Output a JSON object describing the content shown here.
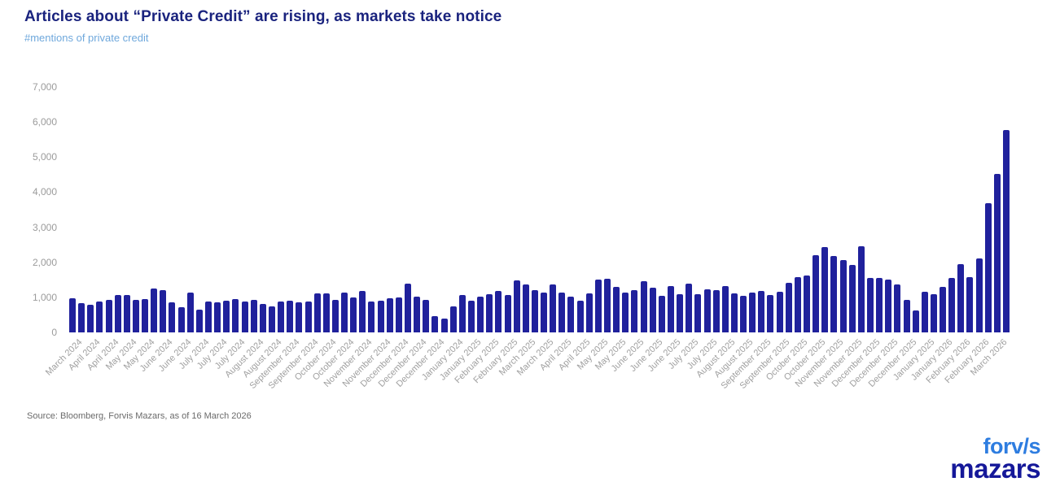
{
  "header": {
    "title": "Articles about “Private Credit” are rising, as markets take notice",
    "subtitle": "#mentions of private credit"
  },
  "chart_data": {
    "type": "bar",
    "title": "Articles about “Private Credit” are rising, as markets take notice",
    "subtitle": "#mentions of private credit",
    "ylabel": "#mentions of private credit",
    "ylim": [
      0,
      7000
    ],
    "y_tick_labels": [
      "7,000",
      "6,000",
      "5,000",
      "4,000",
      "3,000",
      "2,000",
      "1,000",
      "0"
    ],
    "y_tick_values": [
      7000,
      6000,
      5000,
      4000,
      3000,
      2000,
      1000,
      0
    ],
    "grid": false,
    "legend": false,
    "bar_color": "#20219c",
    "label_every": 2,
    "x_tick_labels": [
      "March 2024",
      "April 2024",
      "April 2024",
      "May 2024",
      "May 2024",
      "June 2024",
      "June 2024",
      "July 2024",
      "July 2024",
      "July 2024",
      "August 2024",
      "August 2024",
      "September 2024",
      "September 2024",
      "October 2024",
      "October 2024",
      "November 2024",
      "November 2024",
      "December 2024",
      "December 2024",
      "December 2024",
      "January 2024",
      "January 2025",
      "February 2025",
      "February 2025",
      "March 2025",
      "March 2025",
      "April 2025",
      "April 2025",
      "May 2025",
      "May 2025",
      "June 2025",
      "June 2025",
      "June 2025",
      "July 2025",
      "July 2025",
      "August 2025",
      "August 2025",
      "September 2025",
      "September 2025",
      "October 2025",
      "October 2025",
      "November 2025",
      "November 2025",
      "December 2025",
      "December 2025",
      "December 2025",
      "January 2025",
      "January 2026",
      "February 2026",
      "February 2026",
      "March 2026"
    ],
    "values": [
      985,
      830,
      790,
      890,
      925,
      1075,
      1065,
      925,
      945,
      1255,
      1215,
      855,
      730,
      1125,
      650,
      870,
      855,
      905,
      947,
      884,
      930,
      814,
      737,
      884,
      900,
      868,
      891,
      1116,
      1116,
      923,
      1133,
      1007,
      1186,
      877,
      907,
      984,
      1000,
      1388,
      1031,
      938,
      458,
      402,
      751,
      1077,
      900,
      1023,
      1093,
      1186,
      1077,
      1488,
      1372,
      1202,
      1140,
      1356,
      1140,
      1016,
      914,
      1116,
      1504,
      1519,
      1295,
      1132,
      1202,
      1465,
      1272,
      1039,
      1318,
      1100,
      1395,
      1093,
      1217,
      1202,
      1326,
      1116,
      1047,
      1140,
      1193,
      1077,
      1170,
      1412,
      1581,
      1621,
      2202,
      2442,
      2186,
      2070,
      1930,
      2458,
      1558,
      1558,
      1512,
      1365,
      937,
      635,
      1156,
      1100,
      1295,
      1551,
      1938,
      1574,
      2109,
      3674,
      4512,
      5774
    ]
  },
  "source": {
    "text": "Source: Bloomberg, Forvis Mazars, as of 16 March 2026"
  },
  "logo": {
    "line1": "forv/s",
    "line2": "mazars"
  }
}
